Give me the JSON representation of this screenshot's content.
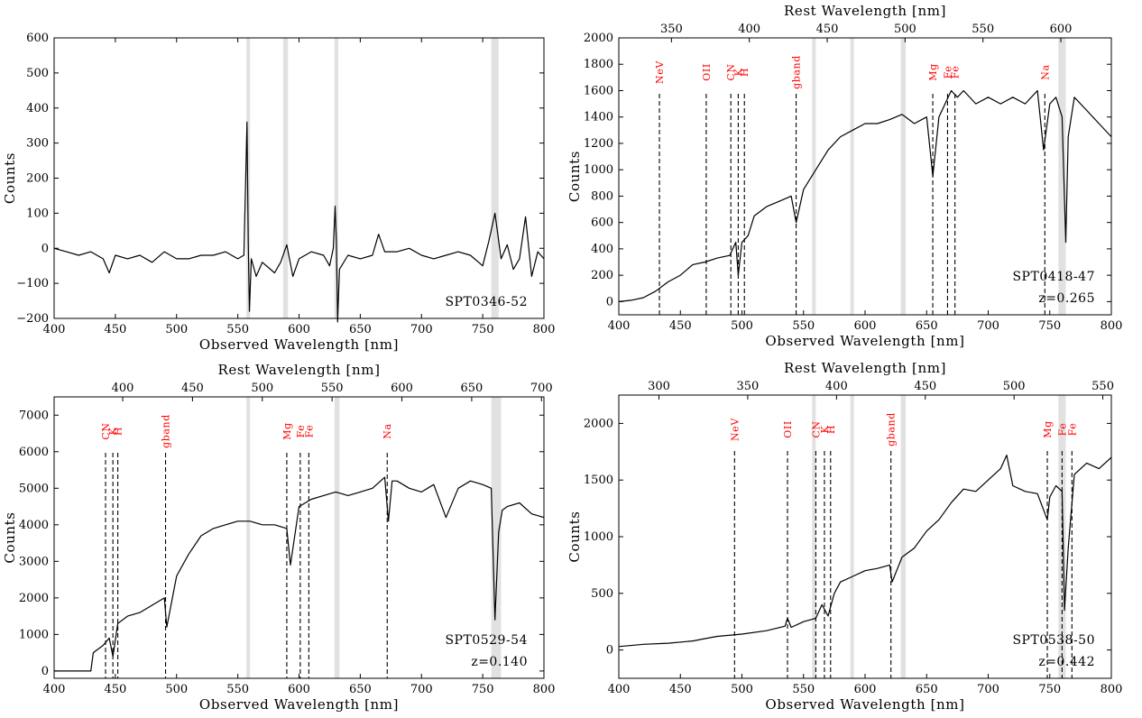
{
  "chart_data": [
    {
      "type": "line",
      "xlabel": "Observed Wavelength [nm]",
      "ylabel": "Counts",
      "xlim": [
        400,
        800
      ],
      "ylim": [
        -200,
        600
      ],
      "xticks": [
        400,
        450,
        500,
        550,
        600,
        650,
        700,
        750,
        800
      ],
      "yticks": [
        -200,
        -100,
        0,
        100,
        200,
        300,
        400,
        500,
        600
      ],
      "annotation": [
        "SPT0346-52"
      ],
      "telluric_bands": [
        [
          557,
          560
        ],
        [
          587,
          591
        ],
        [
          629,
          632
        ],
        [
          757,
          763
        ]
      ],
      "series": [
        {
          "x": [
            400,
            410,
            420,
            430,
            440,
            445,
            450,
            460,
            470,
            480,
            490,
            500,
            510,
            520,
            530,
            540,
            550,
            555,
            557.5,
            558.5,
            559.5,
            561,
            565,
            570,
            580,
            585,
            590,
            595,
            600,
            610,
            620,
            625,
            628,
            629.5,
            630.5,
            631.5,
            633,
            640,
            650,
            660,
            665,
            670,
            680,
            690,
            700,
            710,
            720,
            730,
            740,
            750,
            755,
            760,
            765,
            770,
            775,
            780,
            785,
            790,
            795,
            800
          ],
          "y": [
            0,
            -10,
            -20,
            -10,
            -30,
            -70,
            -20,
            -30,
            -20,
            -40,
            -10,
            -30,
            -30,
            -20,
            -20,
            -10,
            -30,
            -20,
            360,
            20,
            -180,
            -30,
            -80,
            -40,
            -70,
            -40,
            10,
            -80,
            -30,
            -10,
            -20,
            -50,
            0,
            120,
            20,
            -210,
            -60,
            -20,
            -30,
            -20,
            40,
            -10,
            -10,
            0,
            -20,
            -30,
            -20,
            -10,
            -20,
            -50,
            20,
            100,
            -30,
            10,
            -60,
            -30,
            90,
            -80,
            -10,
            -30
          ]
        }
      ],
      "lines": []
    },
    {
      "type": "line",
      "xlabel": "Observed Wavelength [nm]",
      "ylabel": "Counts",
      "x2label": "Rest Wavelength [nm]",
      "redshift": 0.265,
      "xlim": [
        400,
        800
      ],
      "ylim": [
        -100,
        2000
      ],
      "xticks": [
        400,
        450,
        500,
        550,
        600,
        650,
        700,
        750,
        800
      ],
      "yticks": [
        0,
        200,
        400,
        600,
        800,
        1000,
        1200,
        1400,
        1600,
        1800,
        2000
      ],
      "x2ticks": [
        350,
        400,
        450,
        500,
        550,
        600
      ],
      "annotation": [
        "SPT0418-47",
        "z=0.265"
      ],
      "telluric_bands": [
        [
          557,
          560
        ],
        [
          588,
          591
        ],
        [
          629,
          633
        ],
        [
          757,
          763
        ]
      ],
      "lines": [
        {
          "name": "NeV",
          "x": 433
        },
        {
          "name": "OII",
          "x": 471
        },
        {
          "name": "CN",
          "x": 491
        },
        {
          "name": "K",
          "x": 497
        },
        {
          "name": "H",
          "x": 502
        },
        {
          "name": "gband",
          "x": 544
        },
        {
          "name": "Mg",
          "x": 655
        },
        {
          "name": "Fe",
          "x": 667
        },
        {
          "name": "Fe",
          "x": 673
        },
        {
          "name": "Na",
          "x": 746
        }
      ],
      "series": [
        {
          "x": [
            400,
            410,
            420,
            430,
            440,
            450,
            460,
            470,
            480,
            490,
            495,
            497,
            500,
            505,
            510,
            520,
            530,
            540,
            544,
            550,
            560,
            570,
            580,
            590,
            600,
            610,
            620,
            630,
            640,
            650,
            655,
            660,
            665,
            670,
            675,
            680,
            690,
            700,
            710,
            720,
            730,
            740,
            745,
            750,
            755,
            760,
            763,
            765,
            770,
            780,
            790,
            800
          ],
          "y": [
            0,
            10,
            30,
            80,
            150,
            200,
            280,
            300,
            330,
            350,
            450,
            200,
            450,
            500,
            650,
            720,
            760,
            800,
            600,
            850,
            1000,
            1150,
            1250,
            1300,
            1350,
            1350,
            1380,
            1420,
            1350,
            1400,
            950,
            1400,
            1500,
            1600,
            1550,
            1600,
            1500,
            1550,
            1500,
            1550,
            1500,
            1600,
            1150,
            1500,
            1550,
            1400,
            450,
            1250,
            1550,
            1450,
            1350,
            1250
          ]
        }
      ]
    },
    {
      "type": "line",
      "xlabel": "Observed Wavelength [nm]",
      "ylabel": "Counts",
      "x2label": "Rest Wavelength [nm]",
      "redshift": 0.14,
      "xlim": [
        400,
        800
      ],
      "ylim": [
        -200,
        7500
      ],
      "xticks": [
        400,
        450,
        500,
        550,
        600,
        650,
        700,
        750,
        800
      ],
      "yticks": [
        0,
        1000,
        2000,
        3000,
        4000,
        5000,
        6000,
        7000
      ],
      "x2ticks": [
        400,
        450,
        500,
        550,
        600,
        650,
        700
      ],
      "annotation": [
        "SPT0529-54",
        "z=0.140"
      ],
      "telluric_bands": [
        [
          557,
          560
        ],
        [
          629,
          633
        ],
        [
          757,
          765
        ]
      ],
      "lines": [
        {
          "name": "CN",
          "x": 442
        },
        {
          "name": "K",
          "x": 448
        },
        {
          "name": "H",
          "x": 452
        },
        {
          "name": "gband",
          "x": 491
        },
        {
          "name": "Mg",
          "x": 590
        },
        {
          "name": "Fe",
          "x": 601
        },
        {
          "name": "Fe",
          "x": 608
        },
        {
          "name": "Na",
          "x": 672
        }
      ],
      "series": [
        {
          "x": [
            400,
            430,
            432,
            440,
            445,
            448,
            452,
            460,
            470,
            480,
            490,
            492,
            500,
            510,
            520,
            530,
            540,
            550,
            560,
            570,
            580,
            590,
            593,
            600,
            610,
            620,
            630,
            640,
            650,
            660,
            670,
            673,
            676,
            680,
            690,
            700,
            710,
            720,
            730,
            740,
            750,
            757,
            760,
            763,
            766,
            770,
            780,
            790,
            800
          ],
          "y": [
            0,
            0,
            500,
            700,
            900,
            400,
            1300,
            1500,
            1600,
            1800,
            2000,
            1200,
            2600,
            3200,
            3700,
            3900,
            4000,
            4100,
            4100,
            4000,
            4000,
            3900,
            2900,
            4500,
            4700,
            4800,
            4900,
            4800,
            4900,
            5000,
            5300,
            4100,
            5200,
            5200,
            5000,
            4900,
            5100,
            4200,
            5000,
            5200,
            5100,
            5000,
            1400,
            3800,
            4400,
            4500,
            4600,
            4300,
            4200
          ]
        }
      ]
    },
    {
      "type": "line",
      "xlabel": "Observed Wavelength [nm]",
      "ylabel": "Counts",
      "x2label": "Rest Wavelength [nm]",
      "redshift": 0.442,
      "xlim": [
        400,
        800
      ],
      "ylim": [
        -250,
        2250
      ],
      "xticks": [
        400,
        450,
        500,
        550,
        600,
        650,
        700,
        750,
        800
      ],
      "yticks": [
        0,
        500,
        1000,
        1500,
        2000
      ],
      "x2ticks": [
        300,
        350,
        400,
        450,
        500,
        550
      ],
      "annotation": [
        "SPT0538-50",
        "z=0.442"
      ],
      "telluric_bands": [
        [
          557,
          560
        ],
        [
          588,
          591
        ],
        [
          629,
          633
        ],
        [
          757,
          763
        ]
      ],
      "lines": [
        {
          "name": "NeV",
          "x": 494
        },
        {
          "name": "OII",
          "x": 537
        },
        {
          "name": "CN",
          "x": 560
        },
        {
          "name": "K",
          "x": 567
        },
        {
          "name": "H",
          "x": 572
        },
        {
          "name": "gband",
          "x": 621
        },
        {
          "name": "Mg",
          "x": 748
        },
        {
          "name": "Fe",
          "x": 760
        },
        {
          "name": "Fe",
          "x": 768
        }
      ],
      "series": [
        {
          "x": [
            400,
            420,
            440,
            460,
            470,
            480,
            500,
            520,
            535,
            537,
            540,
            550,
            560,
            565,
            570,
            575,
            580,
            590,
            600,
            610,
            620,
            622,
            630,
            640,
            650,
            660,
            670,
            680,
            690,
            700,
            710,
            715,
            720,
            730,
            740,
            748,
            750,
            755,
            760,
            762,
            765,
            770,
            780,
            790,
            800
          ],
          "y": [
            30,
            50,
            60,
            80,
            100,
            120,
            140,
            170,
            210,
            280,
            200,
            250,
            280,
            400,
            300,
            500,
            600,
            650,
            700,
            720,
            750,
            600,
            820,
            900,
            1050,
            1150,
            1300,
            1420,
            1400,
            1500,
            1600,
            1720,
            1450,
            1400,
            1380,
            1150,
            1350,
            1450,
            1400,
            350,
            900,
            1550,
            1650,
            1600,
            1700
          ]
        }
      ]
    }
  ]
}
